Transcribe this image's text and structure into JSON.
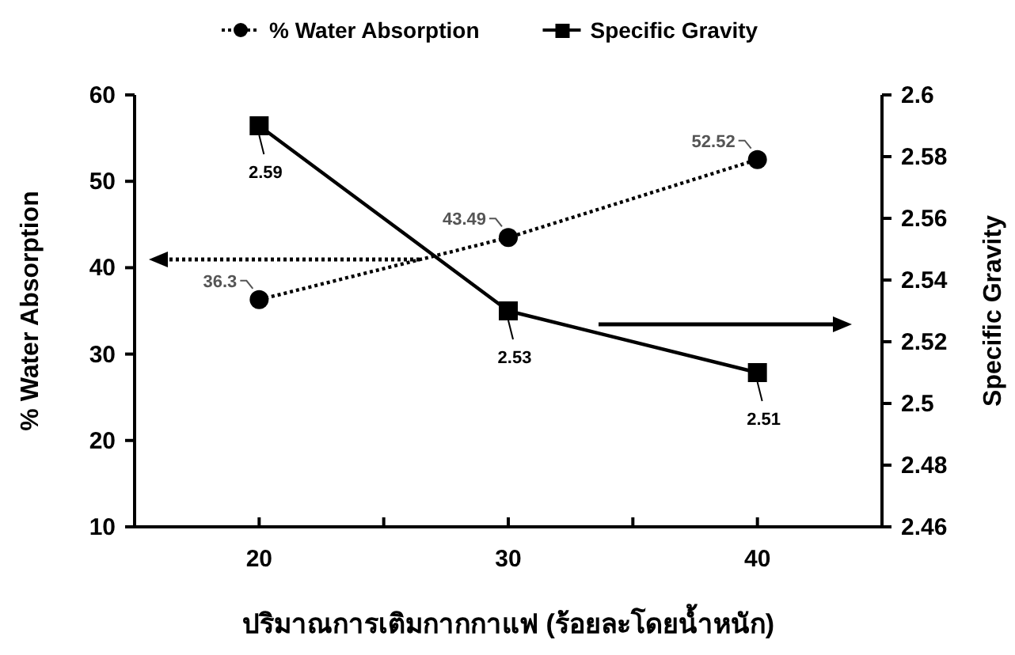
{
  "chart_data": {
    "type": "line",
    "xlabel": "ปริมาณการเติมกากกาแฟ (ร้อยละโดยน้ำหนัก)",
    "ylabel": "% Water Absorption",
    "y2label": "Specific Gravity",
    "x": [
      20,
      30,
      40
    ],
    "xlim": [
      15,
      45
    ],
    "xticks": [
      {
        "value": 15,
        "label": null
      },
      20,
      {
        "value": 25,
        "label": null
      },
      30,
      {
        "value": 35,
        "label": null
      },
      40,
      {
        "value": 45,
        "label": null
      }
    ],
    "ylim": [
      10,
      60
    ],
    "yticks": [
      10,
      20,
      30,
      40,
      50,
      60
    ],
    "y2lim": [
      2.46,
      2.6
    ],
    "y2ticks": [
      2.46,
      2.48,
      2.5,
      2.52,
      2.54,
      2.56,
      2.58,
      2.6
    ],
    "series": [
      {
        "name": "% Water Absorption",
        "color": "#000000",
        "values": [
          36.3,
          43.49,
          52.52
        ],
        "marker": "circle",
        "line_style": "dotted"
      },
      {
        "name": "Specific Gravity",
        "color": "#000000",
        "values": [
          2.59,
          2.53,
          2.51
        ],
        "marker": "square",
        "line_style": "solid",
        "axis": "y2"
      }
    ],
    "data_labels": true,
    "legend": "top",
    "grid": false
  }
}
